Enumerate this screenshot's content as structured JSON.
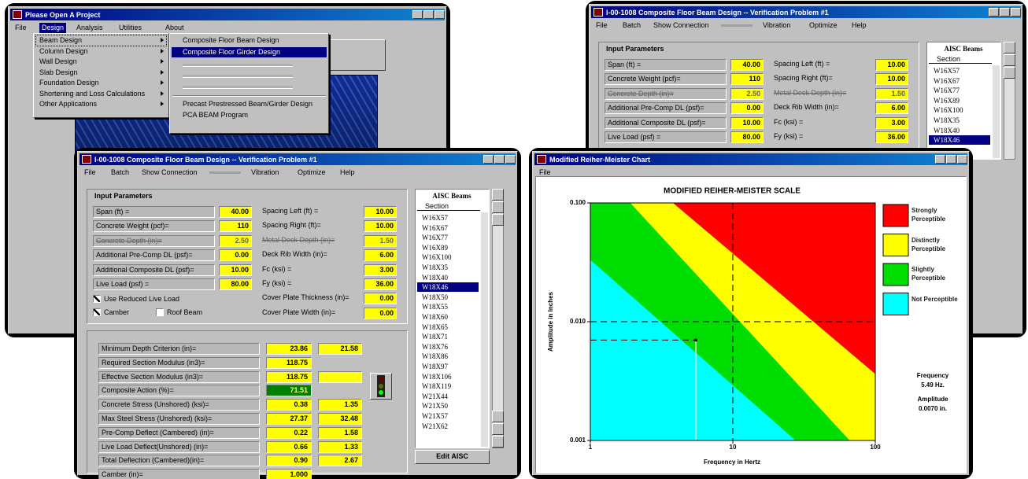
{
  "launcher": {
    "title": "Please Open A Project",
    "menu": [
      "File",
      "Design",
      "Analysis",
      "Utilities",
      "About"
    ],
    "design_menu": [
      "Beam Design",
      "Column Design",
      "Wall Design",
      "Slab Design",
      "Foundation Design",
      "Shortening and Loss Calculations",
      "Other Applications"
    ],
    "beam_menu": [
      "Composite Floor Beam Design",
      "Composite Floor Girder Design",
      "Precast Prestressed Beam/Girder Design",
      "PCA BEAM Program"
    ]
  },
  "beam_window_back": {
    "title": "I-00-1008  Composite Floor Beam Design -- Verification Problem #1",
    "menu": [
      "File",
      "Batch",
      "Show Connection",
      "Vibration",
      "Optimize",
      "Help"
    ],
    "input_title": "Input Parameters",
    "left": [
      {
        "label": "Span (ft) =",
        "value": "40.00"
      },
      {
        "label": "Concrete Weight (pcf)=",
        "value": "110"
      },
      {
        "label": "Concrete Depth (in)=",
        "value": "2.50",
        "disabled": true
      },
      {
        "label": "Additional Pre-Comp DL (psf)=",
        "value": "0.00"
      },
      {
        "label": "Additional Composite DL (psf)=",
        "value": "10.00"
      },
      {
        "label": "Live Load (psf) =",
        "value": "80.00"
      }
    ],
    "right": [
      {
        "label": "Spacing Left (ft) =",
        "value": "10.00"
      },
      {
        "label": "Spacing Right (ft)=",
        "value": "10.00"
      },
      {
        "label": "Metal Deck Depth (in)=",
        "value": "1.50",
        "disabled": true
      },
      {
        "label": "Deck Rib Width (in)=",
        "value": "6.00"
      },
      {
        "label": "Fc (ksi) =",
        "value": "3.00"
      },
      {
        "label": "Fy (ksi) =",
        "value": "36.00"
      }
    ],
    "list_title": "AISC Beams",
    "list_header": "Section",
    "sections": [
      "W16X57",
      "W16X67",
      "W16X77",
      "W16X89",
      "W16X100",
      "W18X35",
      "W18X40",
      "W18X46"
    ],
    "selected": 7
  },
  "beam_window": {
    "title": "I-00-1008  Composite Floor Beam Design -- Verification Problem #1",
    "menu": [
      "File",
      "Batch",
      "Show Connection",
      "Vibration",
      "Optimize",
      "Help"
    ],
    "input_title": "Input Parameters",
    "left": [
      {
        "label": "Span (ft) =",
        "value": "40.00"
      },
      {
        "label": "Concrete Weight (pcf)=",
        "value": "110"
      },
      {
        "label": "Concrete Depth (in)=",
        "value": "2.50",
        "disabled": true
      },
      {
        "label": "Additional Pre-Comp DL (psf)=",
        "value": "0.00"
      },
      {
        "label": "Additional Composite DL (psf)=",
        "value": "10.00"
      },
      {
        "label": "Live Load (psf) =",
        "value": "80.00"
      }
    ],
    "right": [
      {
        "label": "Spacing Left (ft) =",
        "value": "10.00"
      },
      {
        "label": "Spacing Right (ft)=",
        "value": "10.00"
      },
      {
        "label": "Metal Deck Depth (in)=",
        "value": "1.50",
        "disabled": true
      },
      {
        "label": "Deck Rib Width (in)=",
        "value": "6.00"
      },
      {
        "label": "Fc (ksi) =",
        "value": "3.00"
      },
      {
        "label": "Fy (ksi) =",
        "value": "36.00"
      },
      {
        "label": "Cover Plate Thickness (in)=",
        "value": "0.00"
      },
      {
        "label": "Cover Plate Width (in)=",
        "value": "0.00"
      }
    ],
    "checkboxes": [
      {
        "label": "Use Reduced Live Load",
        "checked": true
      },
      {
        "label": "Camber",
        "checked": true
      },
      {
        "label": "Roof Beam",
        "checked": false
      }
    ],
    "results": [
      {
        "label": "Minimum Depth Criterion (in)=",
        "v1": "23.86",
        "v2": "21.58"
      },
      {
        "label": "Required Section Modulus (in3)=",
        "v1": "118.75"
      },
      {
        "label": "Effective Section Modulus (in3)=",
        "v1": "118.75",
        "empty_box": true
      },
      {
        "label": "Composite Action (%)=",
        "v1": "71.51",
        "highlight": "#008000"
      },
      {
        "label": "Concrete Stress (Unshored) (ksi)=",
        "v1": "0.38",
        "v2": "1.35"
      },
      {
        "label": "Max Steel Stress (Unshored) (ksi)=",
        "v1": "27.37",
        "v2": "32.48"
      },
      {
        "label": "Pre-Comp Deflect (Cambered) (in)=",
        "v1": "0.22",
        "v2": "1.58"
      },
      {
        "label": "Live Load Deflect(Unshored) (in)=",
        "v1": "0.66",
        "v2": "1.33"
      },
      {
        "label": "Total Deflection (Cambered)(in)=",
        "v1": "0.90",
        "v2": "2.67"
      },
      {
        "label": "Camber (in)=",
        "v1": "1.000"
      }
    ],
    "list_title": "AISC Beams",
    "list_header": "Section",
    "sections": [
      "W16X57",
      "W16X67",
      "W16X77",
      "W16X89",
      "W16X100",
      "W18X35",
      "W18X40",
      "W18X46",
      "W18X50",
      "W18X55",
      "W18X60",
      "W18X65",
      "W18X71",
      "W18X76",
      "W18X86",
      "W18X97",
      "W18X106",
      "W18X119",
      "W21X44",
      "W21X50",
      "W21X57",
      "W21X62"
    ],
    "selected": 7,
    "button": "Edit AISC"
  },
  "chart_window": {
    "title": "Modified Reiher-Meister Chart",
    "menu": [
      "File"
    ]
  },
  "chart_data": {
    "type": "log-region",
    "title": "MODIFIED REIHER-MEISTER SCALE",
    "xlabel": "Frequency in Hertz",
    "ylabel": "Amplitude in Inches",
    "xlim": [
      1,
      100
    ],
    "ylim": [
      0.001,
      0.1
    ],
    "xticks": [
      1,
      10,
      100
    ],
    "yticks": [
      {
        "value": 0.001,
        "label": "0.001"
      },
      {
        "value": 0.01,
        "label": "0.010"
      },
      {
        "value": 0.1,
        "label": "0.100"
      }
    ],
    "log_x": true,
    "log_y": true,
    "grid": true,
    "regions": [
      {
        "name": "Strongly Perceptible",
        "color": "#ff0000"
      },
      {
        "name": "Distinctly Perceptible",
        "color": "#ffff00"
      },
      {
        "name": "Slightly Perceptible",
        "color": "#00dd00"
      },
      {
        "name": "Not Perceptible",
        "color": "#00ffff"
      }
    ],
    "point": {
      "x": 5.49,
      "y": 0.007
    },
    "annotations": [
      "Frequency",
      "5.49 Hz.",
      "Amplitude",
      "0.0070 in."
    ]
  }
}
